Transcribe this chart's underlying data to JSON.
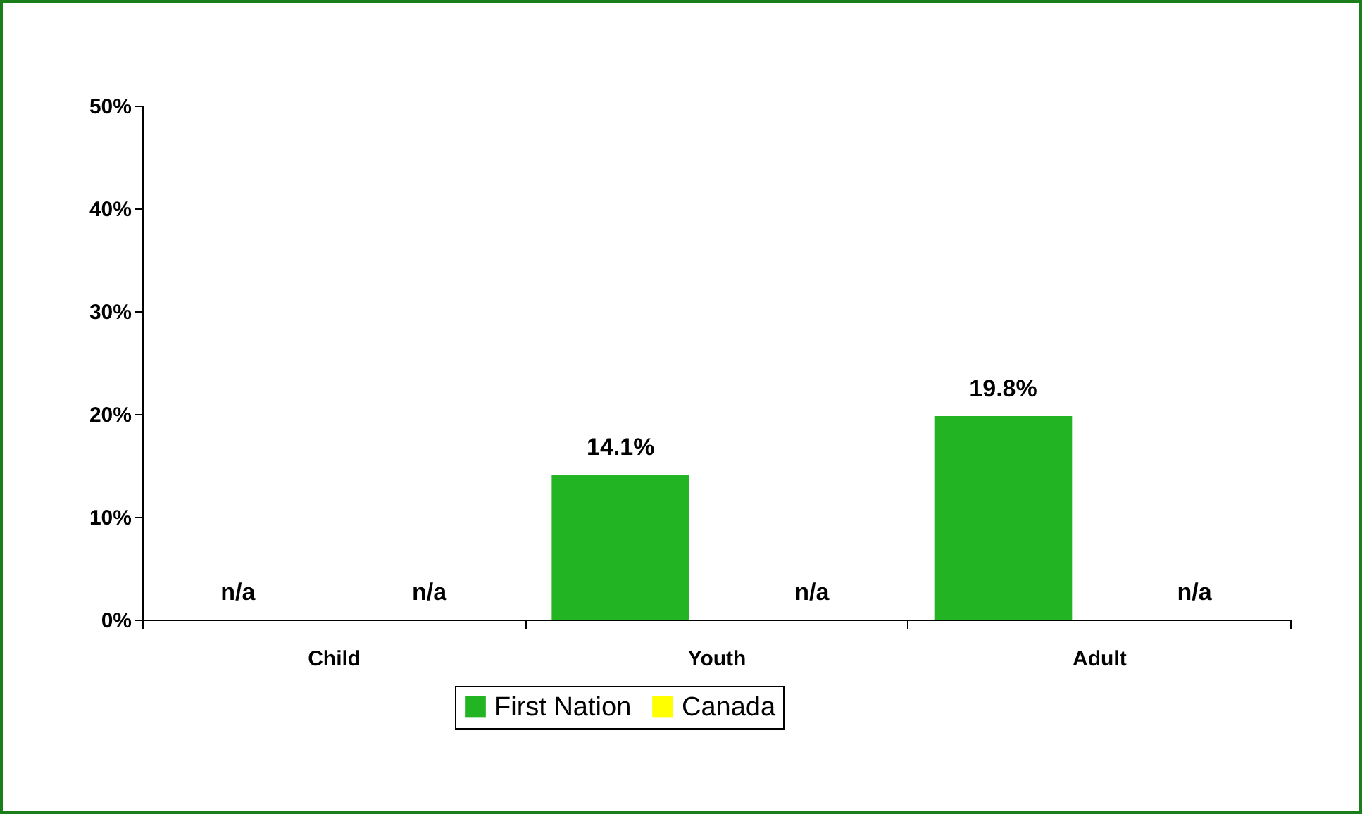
{
  "chart_data": {
    "type": "bar",
    "categories": [
      "Child",
      "Youth",
      "Adult"
    ],
    "series": [
      {
        "name": "First Nation",
        "color": "#22b422",
        "values": [
          null,
          14.1,
          19.8
        ],
        "value_labels": [
          "n/a",
          "14.1%",
          "19.8%"
        ]
      },
      {
        "name": "Canada",
        "color": "#ffff00",
        "values": [
          null,
          null,
          null
        ],
        "value_labels": [
          "n/a",
          "n/a",
          "n/a"
        ]
      }
    ],
    "ylim": [
      0,
      50
    ],
    "yticks": [
      {
        "value": 0,
        "label": "0%"
      },
      {
        "value": 10,
        "label": "10%"
      },
      {
        "value": 20,
        "label": "20%"
      },
      {
        "value": 30,
        "label": "30%"
      },
      {
        "value": 40,
        "label": "40%"
      },
      {
        "value": 50,
        "label": "50%"
      }
    ],
    "grid": false,
    "legend": "bottom"
  }
}
